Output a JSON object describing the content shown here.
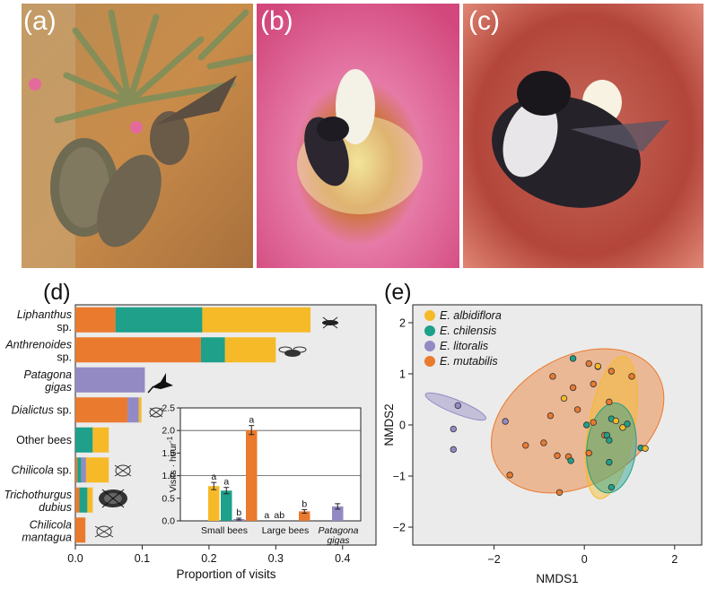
{
  "photos": [
    {
      "letter": "(a)",
      "subject": "hummingbird"
    },
    {
      "letter": "(b)",
      "subject": "small-bee"
    },
    {
      "letter": "(c)",
      "subject": "large-bee"
    }
  ],
  "colors": {
    "E_albidiflora": "#f6ba29",
    "E_chilensis": "#1ea08a",
    "E_litoralis": "#938ac4",
    "E_mutabilis": "#ea7a2e",
    "panel_bg": "#ebebeb"
  },
  "chart_data": [
    {
      "panel": "(d)",
      "type": "bar",
      "orientation": "horizontal",
      "stacked": true,
      "xlabel": "Proportion of visits",
      "xlim": [
        0,
        0.45
      ],
      "xticks": [
        "0.0",
        "0.1",
        "0.2",
        "0.3",
        "0.4"
      ],
      "categories": [
        {
          "line1": "Liphanthus",
          "line2": "sp.",
          "italic2": false
        },
        {
          "line1": "Anthrenoides",
          "line2": "sp.",
          "italic2": false
        },
        {
          "line1": "Patagona",
          "line2": "gigas",
          "italic2": true
        },
        {
          "line1": "Dialictus",
          "line2": " sp.",
          "inline": true
        },
        {
          "line1": "Other bees",
          "line2": "",
          "plain": true
        },
        {
          "line1": "Chilicola",
          "line2": " sp.",
          "inline": true
        },
        {
          "line1": "Trichothurgus",
          "line2": "dubius",
          "italic2": true
        },
        {
          "line1": "Chilicola",
          "line2": "mantagua",
          "italic2": true
        }
      ],
      "series": [
        {
          "name": "E. mutabilis",
          "values": [
            0.06,
            0.188,
            0,
            0.078,
            0,
            0.003,
            0.006,
            0.015
          ]
        },
        {
          "name": "E. chilensis",
          "values": [
            0.13,
            0.036,
            0,
            0,
            0.026,
            0.006,
            0.012,
            0
          ]
        },
        {
          "name": "E. litoralis",
          "values": [
            0,
            0,
            0.104,
            0.017,
            0,
            0.007,
            0,
            0
          ]
        },
        {
          "name": "E. albidiflora",
          "values": [
            0.162,
            0.076,
            0,
            0.004,
            0.024,
            0.034,
            0.008,
            0
          ]
        }
      ],
      "inset": {
        "type": "bar",
        "ylabel": "Visits · hour",
        "ylabel_sup": "-1",
        "ylim": [
          0,
          2.5
        ],
        "yticks": [
          "0.0",
          "0.5",
          "1.0",
          "1.5",
          "2.0",
          "2.5"
        ],
        "groups": [
          {
            "name": "Small bees",
            "italic": false,
            "bars": [
              {
                "series": "E. albidiflora",
                "value": 0.77,
                "err": 0.08,
                "letter": "a"
              },
              {
                "series": "E. chilensis",
                "value": 0.67,
                "err": 0.07,
                "letter": "a"
              },
              {
                "series": "E. litoralis",
                "value": 0.04,
                "err": 0.02,
                "letter": "b"
              },
              {
                "series": "E. mutabilis",
                "value": 2.01,
                "err": 0.1,
                "letter": "a"
              }
            ]
          },
          {
            "name": "Large bees",
            "italic": false,
            "bars": [
              {
                "series": "E. albidiflora",
                "value": 0.0,
                "err": 0,
                "letter": "a"
              },
              {
                "series": "E. chilensis",
                "value": 0.0,
                "err": 0,
                "letter": "ab"
              },
              {
                "series": "E. litoralis",
                "value": 0.0,
                "err": 0,
                "letter": ""
              },
              {
                "series": "E. mutabilis",
                "value": 0.21,
                "err": 0.04,
                "letter": "b"
              }
            ]
          },
          {
            "name1": "Patagona",
            "name2": "gigas",
            "italic": true,
            "bars": [
              {
                "series": "E. litoralis",
                "value": 0.32,
                "err": 0.06,
                "letter": ""
              }
            ]
          }
        ]
      }
    },
    {
      "panel": "(e)",
      "type": "scatter",
      "xlabel": "NMDS1",
      "ylabel": "NMDS2",
      "xlim": [
        -3.8,
        2.6
      ],
      "ylim": [
        -2.35,
        2.35
      ],
      "xticks": [
        -2,
        0,
        2
      ],
      "yticks": [
        -2,
        -1,
        0,
        1,
        2
      ],
      "legend": [
        "E. albidiflora",
        "E. chilensis",
        "E. litoralis",
        "E. mutabilis"
      ],
      "legend_position": "top-left",
      "ellipses": [
        {
          "series": "E. mutabilis",
          "cx": -0.15,
          "cy": 0.08,
          "rx": 2.05,
          "ry": 1.25,
          "angle_deg": 30
        },
        {
          "series": "E. albidiflora",
          "cx": 0.6,
          "cy": -0.05,
          "rx": 1.6,
          "ry": 0.45,
          "angle_deg": 80
        },
        {
          "series": "E. chilensis",
          "cx": 0.6,
          "cy": -0.45,
          "rx": 1.0,
          "ry": 0.48,
          "angle_deg": 84
        },
        {
          "series": "E. litoralis",
          "cx": -2.85,
          "cy": 0.36,
          "rx": 0.72,
          "ry": 0.13,
          "angle_deg": -22
        }
      ],
      "points": [
        {
          "series": "E. litoralis",
          "x": -2.8,
          "y": 0.38
        },
        {
          "series": "E. litoralis",
          "x": -2.9,
          "y": -0.08
        },
        {
          "series": "E. litoralis",
          "x": -2.9,
          "y": -0.48
        },
        {
          "series": "E. litoralis",
          "x": -1.75,
          "y": 0.07
        },
        {
          "series": "E. mutabilis",
          "x": 0.1,
          "y": 1.2
        },
        {
          "series": "E. mutabilis",
          "x": 0.3,
          "y": 1.14
        },
        {
          "series": "E. mutabilis",
          "x": 0.6,
          "y": 1.05
        },
        {
          "series": "E. mutabilis",
          "x": 1.05,
          "y": 0.95
        },
        {
          "series": "E. mutabilis",
          "x": -0.7,
          "y": 0.95
        },
        {
          "series": "E. mutabilis",
          "x": -0.25,
          "y": 0.73
        },
        {
          "series": "E. mutabilis",
          "x": 0.2,
          "y": 0.8
        },
        {
          "series": "E. mutabilis",
          "x": 0.55,
          "y": 0.45
        },
        {
          "series": "E. mutabilis",
          "x": -0.75,
          "y": 0.18
        },
        {
          "series": "E. mutabilis",
          "x": -0.9,
          "y": -0.35
        },
        {
          "series": "E. mutabilis",
          "x": -1.3,
          "y": -0.4
        },
        {
          "series": "E. mutabilis",
          "x": -0.35,
          "y": -0.62
        },
        {
          "series": "E. mutabilis",
          "x": -0.6,
          "y": -0.6
        },
        {
          "series": "E. mutabilis",
          "x": -1.65,
          "y": -0.98
        },
        {
          "series": "E. mutabilis",
          "x": -0.55,
          "y": -1.32
        },
        {
          "series": "E. mutabilis",
          "x": 0.1,
          "y": -0.55
        },
        {
          "series": "E. mutabilis",
          "x": 0.2,
          "y": 0.05
        },
        {
          "series": "E. mutabilis",
          "x": -0.15,
          "y": 0.3
        },
        {
          "series": "E. mutabilis",
          "x": 0.45,
          "y": -0.2
        },
        {
          "series": "E. chilensis",
          "x": -0.25,
          "y": 1.3
        },
        {
          "series": "E. chilensis",
          "x": 0.05,
          "y": 0.0
        },
        {
          "series": "E. chilensis",
          "x": 0.6,
          "y": 0.12
        },
        {
          "series": "E. chilensis",
          "x": 0.95,
          "y": 0.02
        },
        {
          "series": "E. chilensis",
          "x": 0.5,
          "y": -0.2
        },
        {
          "series": "E. chilensis",
          "x": 0.55,
          "y": -0.73
        },
        {
          "series": "E. chilensis",
          "x": 1.25,
          "y": -0.45
        },
        {
          "series": "E. chilensis",
          "x": 0.6,
          "y": -1.22
        },
        {
          "series": "E. chilensis",
          "x": -0.3,
          "y": -0.7
        },
        {
          "series": "E. chilensis",
          "x": 0.55,
          "y": -0.3
        },
        {
          "series": "E. albidiflora",
          "x": 1.35,
          "y": -0.46
        },
        {
          "series": "E. albidiflora",
          "x": 0.7,
          "y": 0.08
        },
        {
          "series": "E. albidiflora",
          "x": 0.3,
          "y": 1.15
        },
        {
          "series": "E. albidiflora",
          "x": -0.45,
          "y": 0.52
        },
        {
          "series": "E. albidiflora",
          "x": 0.85,
          "y": -0.05
        }
      ]
    }
  ]
}
